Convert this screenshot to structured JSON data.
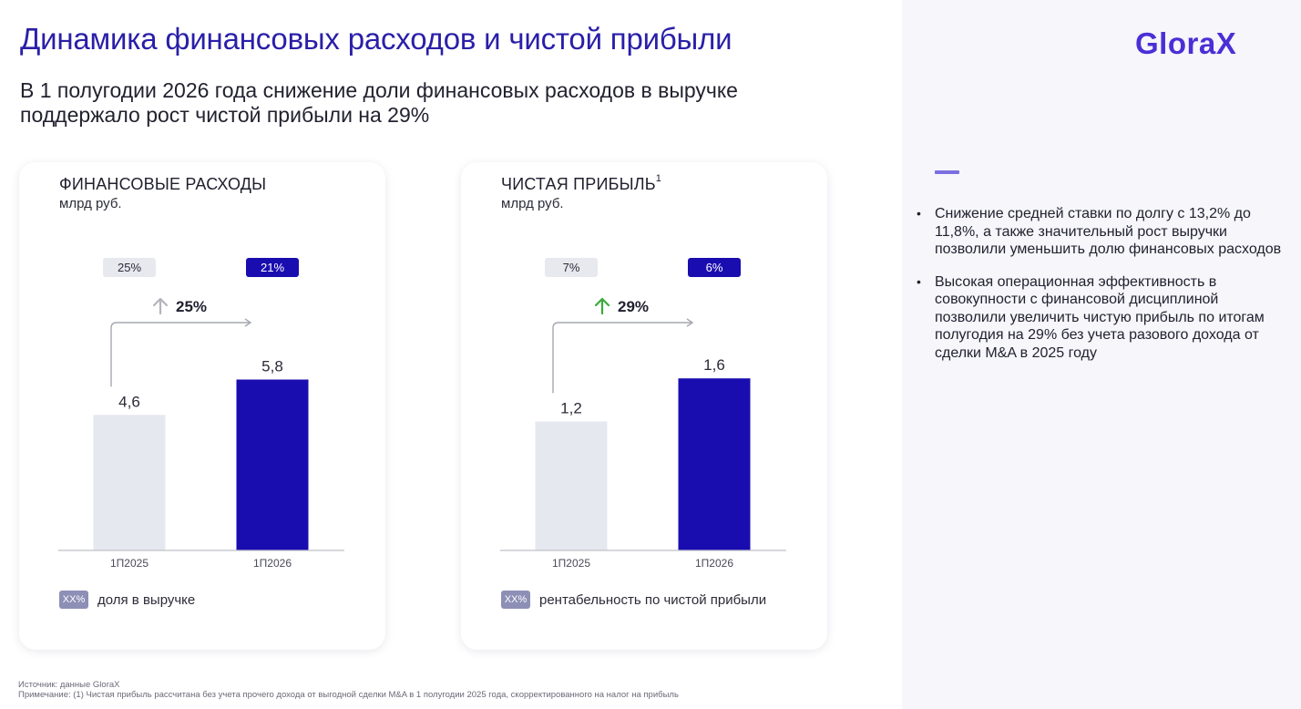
{
  "header": {
    "title": "Динамика финансовых расходов и чистой прибыли",
    "subtitle": "В 1 полугодии 2026 года снижение доли финансовых расходов в выручке поддержало рост чистой прибыли на 29%"
  },
  "brand": {
    "logo_text": "GloraX",
    "logo_color": "#4a2fd6"
  },
  "colors": {
    "prior_bar": "#e5e8ee",
    "current_bar": "#1a0db0",
    "up_arrow_green": "#3caa3c",
    "up_arrow_grey": "#b4b4bc"
  },
  "cards": [
    {
      "title": "ФИНАНСОВЫЕ РАСХОДЫ",
      "footnote_mark": "",
      "unit": "млрд руб.",
      "growth": "25%",
      "legend_swatch": "XX%",
      "legend_label": "доля в выручке"
    },
    {
      "title": "ЧИСТАЯ ПРИБЫЛЬ",
      "footnote_mark": "1",
      "unit": "млрд руб.",
      "growth": "29%",
      "legend_swatch": "XX%",
      "legend_label": "рентабельность по чистой прибыли"
    }
  ],
  "chart_data": [
    {
      "type": "bar",
      "title": "ФИНАНСОВЫЕ РАСХОДЫ",
      "ylabel": "млрд руб.",
      "categories": [
        "1П2025",
        "1П2026"
      ],
      "values": [
        4.6,
        5.8
      ],
      "value_labels": [
        "4,6",
        "5,8"
      ],
      "share_labels": [
        "25%",
        "21%"
      ],
      "growth_label": "25%",
      "growth_arrow": "grey",
      "ylim": [
        0,
        7.3
      ],
      "grid": false
    },
    {
      "type": "bar",
      "title": "ЧИСТАЯ ПРИБЫЛЬ",
      "ylabel": "млрд руб.",
      "categories": [
        "1П2025",
        "1П2026"
      ],
      "values": [
        1.2,
        1.6
      ],
      "value_labels": [
        "1,2",
        "1,6"
      ],
      "share_labels": [
        "7%",
        "6%"
      ],
      "growth_label": "29%",
      "growth_arrow": "green",
      "ylim": [
        0,
        2.0
      ],
      "grid": false
    }
  ],
  "side_panel": {
    "bullets": [
      "Снижение средней ставки по долгу с 13,2% до 11,8%, а также значительный рост выручки позволили уменьшить долю финансовых расходов",
      "Высокая операционная эффективность в совокупности с финансовой дисциплиной позволили увеличить чистую прибыль по итогам полугодия на 29% без учета разового дохода от сделки M&A в 2025 году"
    ]
  },
  "footer": {
    "source": "Источник: данные GloraX",
    "note": "Примечание: (1) Чистая прибыль рассчитана без учета прочего дохода от выгодной сделки M&A в 1 полугодии 2025 года, скорректированного на налог на прибыль"
  }
}
